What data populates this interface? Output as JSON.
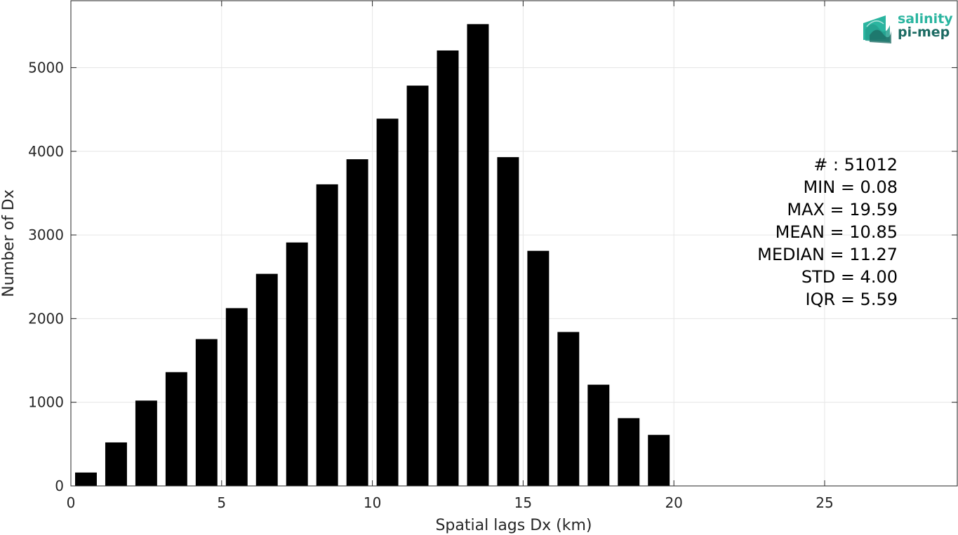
{
  "chart_data": {
    "type": "bar",
    "x": [
      0.5,
      1.5,
      2.5,
      3.5,
      4.5,
      5.5,
      6.5,
      7.5,
      8.5,
      9.5,
      10.5,
      11.5,
      12.5,
      13.5,
      14.5,
      15.5,
      16.5,
      17.5,
      18.5,
      19.5
    ],
    "values": [
      160,
      520,
      1020,
      1360,
      1755,
      2125,
      2535,
      2910,
      3605,
      3905,
      4390,
      4785,
      5205,
      5520,
      3930,
      2810,
      1840,
      1210,
      810,
      610
    ],
    "xlabel": "Spatial lags Dx (km)",
    "ylabel": "Number of Dx",
    "xlim": [
      0,
      29.4
    ],
    "ylim": [
      0,
      5800
    ],
    "xticks": [
      0,
      5,
      10,
      15,
      20,
      25
    ],
    "yticks": [
      0,
      1000,
      2000,
      3000,
      4000,
      5000
    ],
    "bar_color": "#000000",
    "grid": true,
    "annotations": [
      "# : 51012",
      "MIN = 0.08",
      "MAX =  19.59",
      "MEAN = 10.85",
      "MEDIAN = 11.27",
      "STD = 4.00",
      "IQR = 5.59"
    ]
  },
  "logo": {
    "line1": "salinity",
    "line2": "pi-mep",
    "color_top": "#2bb5a0",
    "color_bottom": "#1c6b63"
  }
}
